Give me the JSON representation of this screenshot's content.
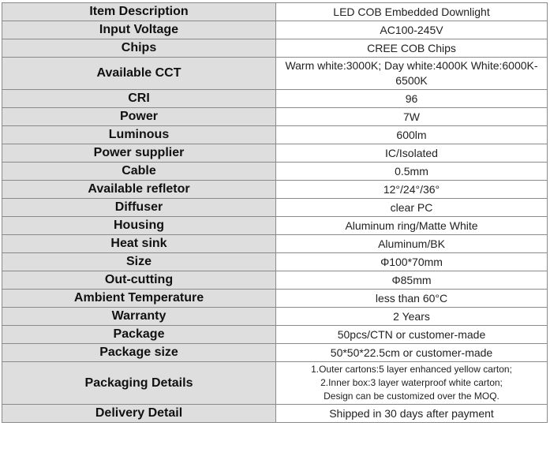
{
  "table": {
    "rows": [
      {
        "label": "Item Description",
        "value": "LED COB Embedded Downlight"
      },
      {
        "label": "Input Voltage",
        "value": "AC100-245V"
      },
      {
        "label": "Chips",
        "value": "CREE COB Chips"
      },
      {
        "label": "Available CCT",
        "value": "Warm white:3000K; Day white:4000K White:6000K-6500K"
      },
      {
        "label": "CRI",
        "value": "96"
      },
      {
        "label": "Power",
        "value": "7W"
      },
      {
        "label": "Luminous",
        "value": "600lm"
      },
      {
        "label": "Power supplier",
        "value": "IC/Isolated"
      },
      {
        "label": "Cable",
        "value": "0.5mm"
      },
      {
        "label": "Available refletor",
        "value": "12°/24°/36°"
      },
      {
        "label": "Diffuser",
        "value": "clear PC"
      },
      {
        "label": "Housing",
        "value": "Aluminum ring/Matte White"
      },
      {
        "label": "Heat sink",
        "value": "Aluminum/BK"
      },
      {
        "label": "Size",
        "value": "Φ100*70mm"
      },
      {
        "label": "Out-cutting",
        "value": "Φ85mm"
      },
      {
        "label": "Ambient Temperature",
        "value": "less than 60°C"
      },
      {
        "label": "Warranty",
        "value": "2 Years"
      },
      {
        "label": "Package",
        "value": "50pcs/CTN or customer-made"
      },
      {
        "label": "Package size",
        "value": "50*50*22.5cm or customer-made"
      },
      {
        "label": "Packaging Details",
        "lines": [
          "1.Outer cartons:5 layer enhanced yellow carton;",
          "2.Inner box:3 layer waterproof white carton;",
          "Design can be customized over the MOQ."
        ]
      },
      {
        "label": "Delivery Detail",
        "value": "Shipped in 30 days after payment"
      }
    ]
  }
}
